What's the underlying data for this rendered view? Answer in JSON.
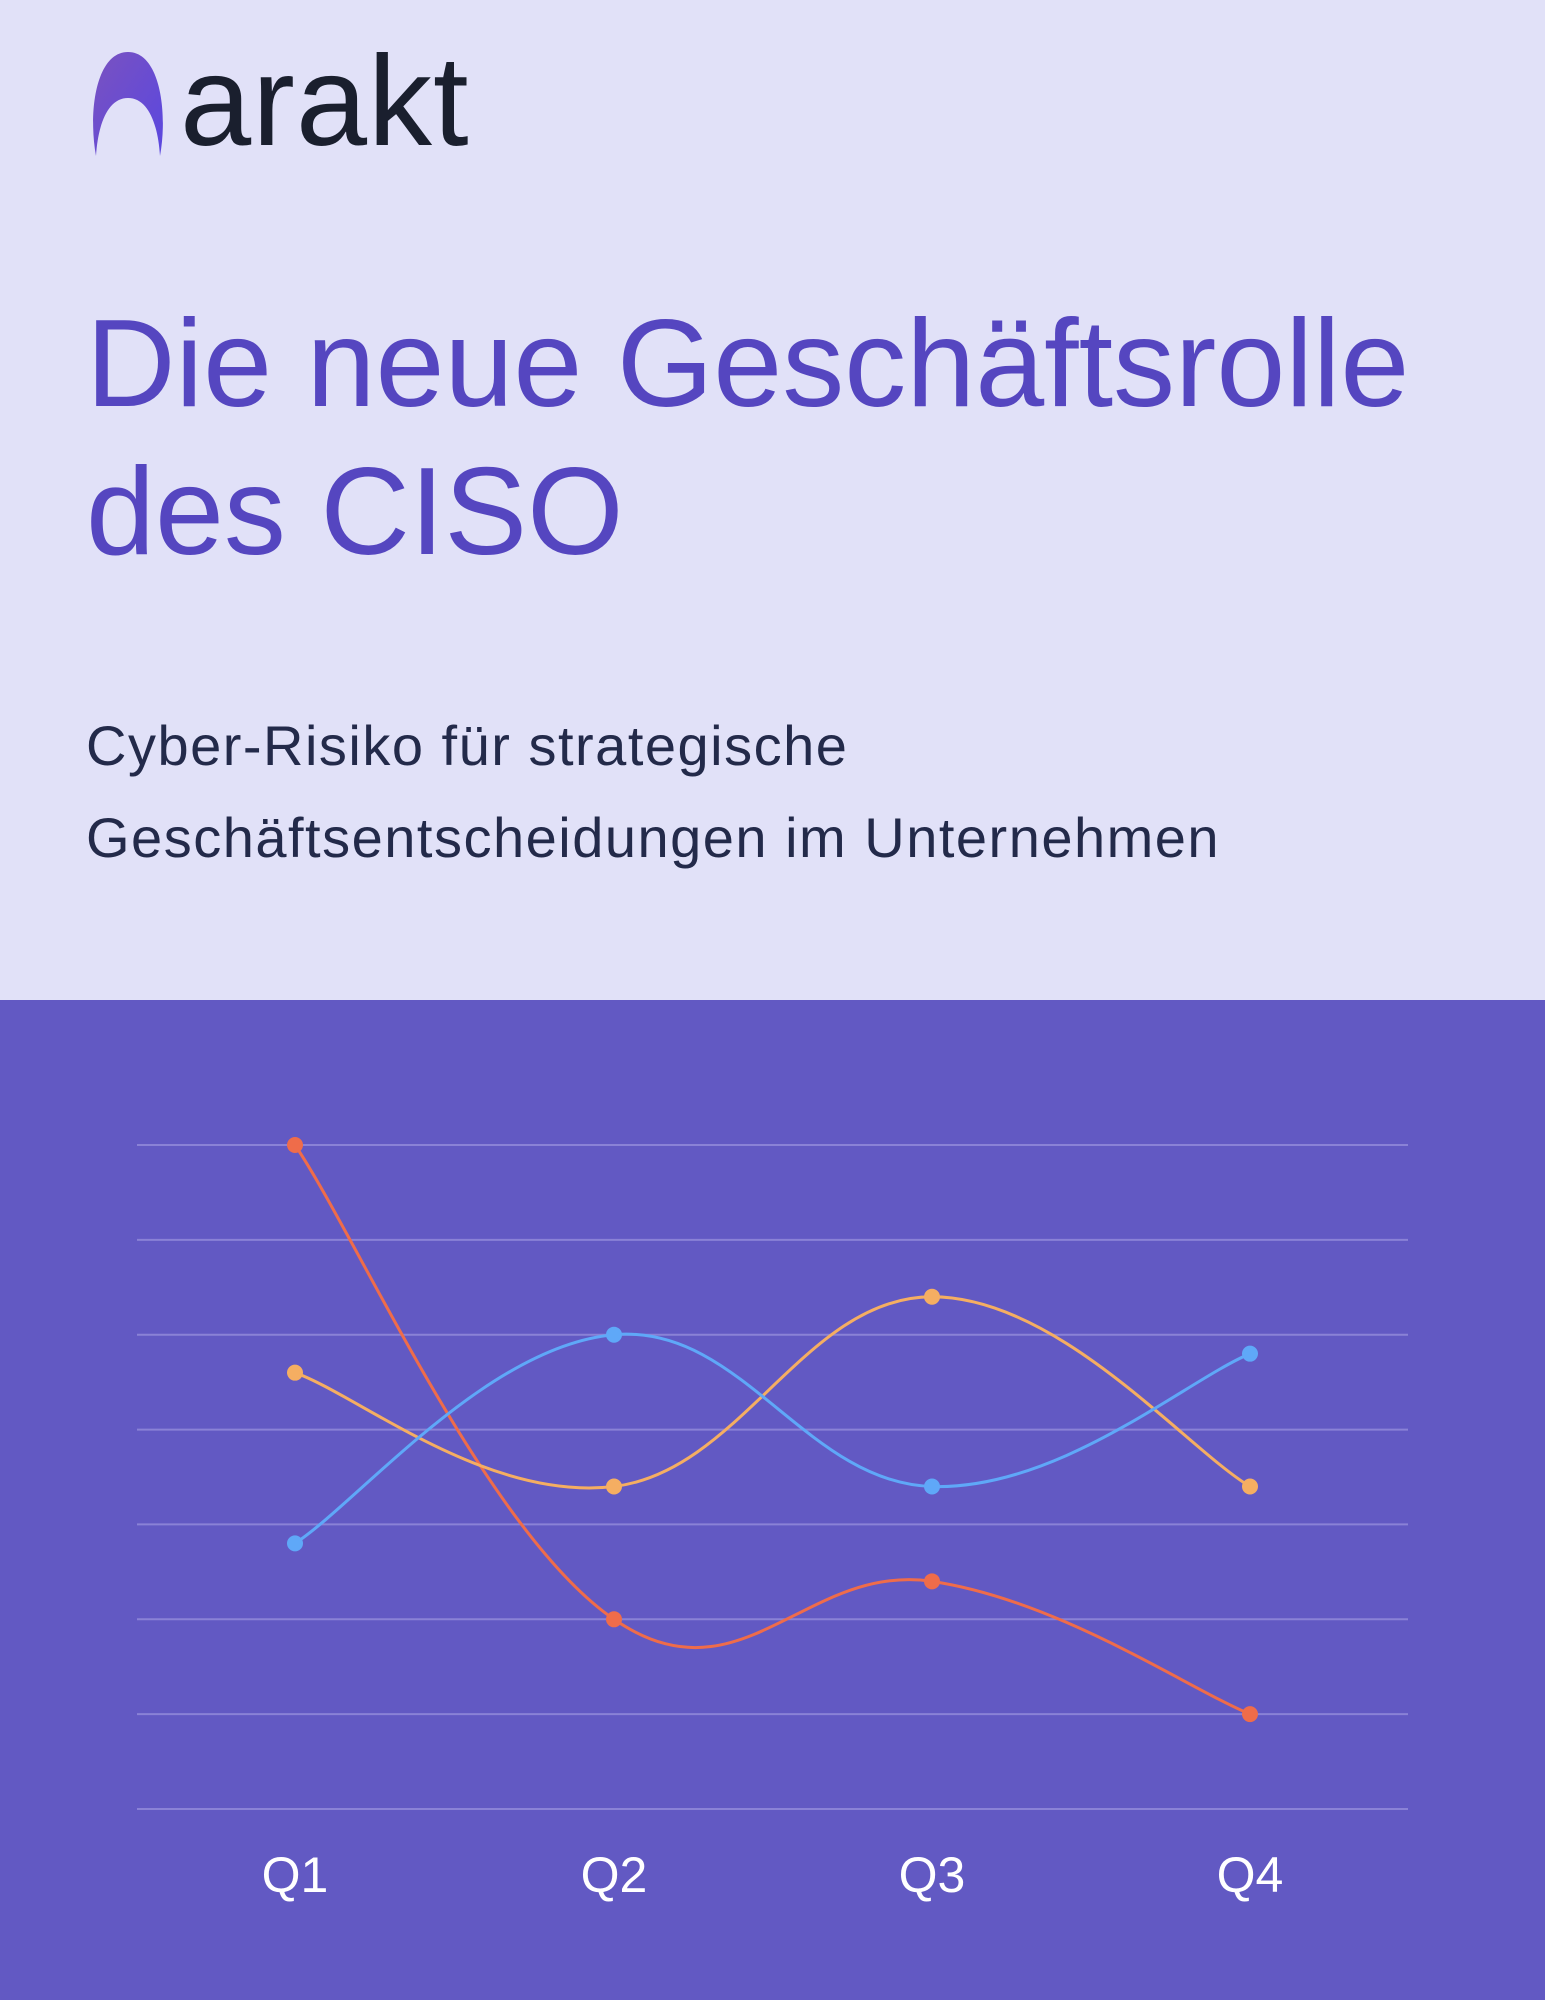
{
  "brand": {
    "name": "arakt",
    "logo_gradient": [
      "#7a52c0",
      "#5a47e0"
    ]
  },
  "header": {
    "title_lines": [
      "Die neue Geschäftsrolle",
      "des CISO"
    ],
    "subtitle_lines": [
      "Cyber-Risiko für strategische",
      "Geschäftsentscheidungen im Unternehmen"
    ]
  },
  "colors": {
    "top_background": "#e1e1f8",
    "chart_background": "#6259c3",
    "title": "#5546c0"
  },
  "chart_data": {
    "type": "line",
    "categories": [
      "Q1",
      "Q2",
      "Q3",
      "Q4"
    ],
    "ylim": [
      0,
      7
    ],
    "grid": true,
    "smooth": true,
    "series": [
      {
        "color": "#ef6c4a",
        "values": [
          7,
          2,
          2.4,
          1
        ]
      },
      {
        "color": "#f5ae62",
        "values": [
          4.6,
          3.4,
          5.4,
          3.4
        ]
      },
      {
        "color": "#5fa8f8",
        "values": [
          2.8,
          5,
          3.4,
          4.8
        ]
      }
    ]
  }
}
